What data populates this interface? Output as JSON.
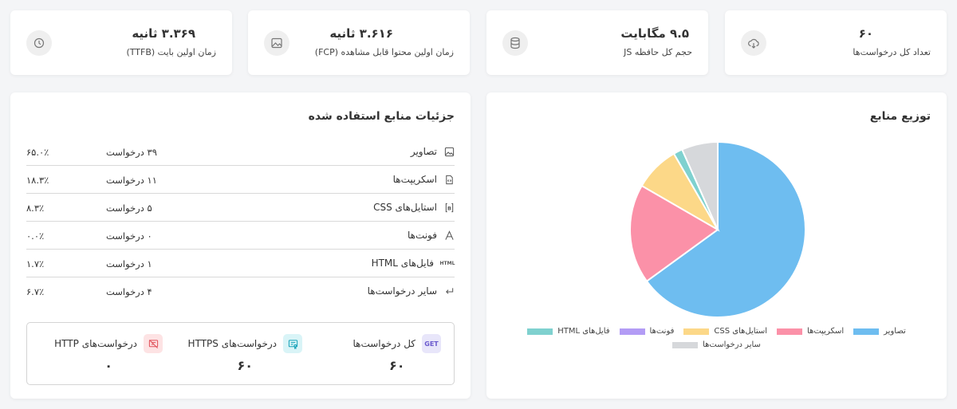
{
  "stats": [
    {
      "value": "۶۰",
      "label": "تعداد کل درخواست‌ها",
      "icon": "cloud-download-icon"
    },
    {
      "value": "۹.۵ مگابایت",
      "label": "حجم کل حافظه JS",
      "icon": "database-icon"
    },
    {
      "value": "۳.۶۱۶ ثانیه",
      "label": "زمان اولین محتوا قابل مشاهده (FCP)",
      "icon": "image-icon"
    },
    {
      "value": "۳.۳۶۹ ثانیه",
      "label": "زمان اولین بایت (TTFB)",
      "icon": "clock-icon"
    }
  ],
  "distribution": {
    "title": "توزیع منابع"
  },
  "details": {
    "title": "جزئیات منابع استفاده شده",
    "rows": [
      {
        "name": "تصاویر",
        "count": "۳۹ درخواست",
        "percent": "۶۵.۰٪",
        "icon": "image-icon"
      },
      {
        "name": "اسکریپت‌ها",
        "count": "۱۱ درخواست",
        "percent": "۱۸.۳٪",
        "icon": "script-file-icon"
      },
      {
        "name": "استایل‌های CSS",
        "count": "۵ درخواست",
        "percent": "۸.۳٪",
        "icon": "css-brackets-icon"
      },
      {
        "name": "فونت‌ها",
        "count": "۰ درخواست",
        "percent": "۰.۰٪",
        "icon": "font-icon"
      },
      {
        "name": "فایل‌های HTML",
        "count": "۱ درخواست",
        "percent": "۱.۷٪",
        "icon": "html-icon",
        "icon_text": "HTML"
      },
      {
        "name": "سایر درخواست‌ها",
        "count": "۴ درخواست",
        "percent": "۶.۷٪",
        "icon": "return-arrow-icon"
      }
    ],
    "summary": {
      "total": {
        "label": "کل درخواست‌ها",
        "value": "۶۰",
        "badge": "GET",
        "color": "#6a5acd",
        "bg": "#e8e6fa"
      },
      "https": {
        "label": "درخواست‌های HTTPS",
        "value": "۶۰",
        "color": "#17a2b8",
        "bg": "#d9f4f7"
      },
      "http": {
        "label": "درخواست‌های HTTP",
        "value": "۰",
        "color": "#e0505a",
        "bg": "#fde3e4"
      }
    }
  },
  "chart_data": {
    "type": "pie",
    "categories": [
      "تصاویر",
      "اسکریپت‌ها",
      "استایل‌های CSS",
      "فونت‌ها",
      "فایل‌های HTML",
      "سایر درخواست‌ها"
    ],
    "values": [
      39,
      11,
      5,
      0,
      1,
      4
    ],
    "colors": [
      "#6ebdf0",
      "#fb91a8",
      "#fcd888",
      "#b39cf5",
      "#7fd1cf",
      "#d6d8db"
    ],
    "legend_position": "bottom"
  }
}
